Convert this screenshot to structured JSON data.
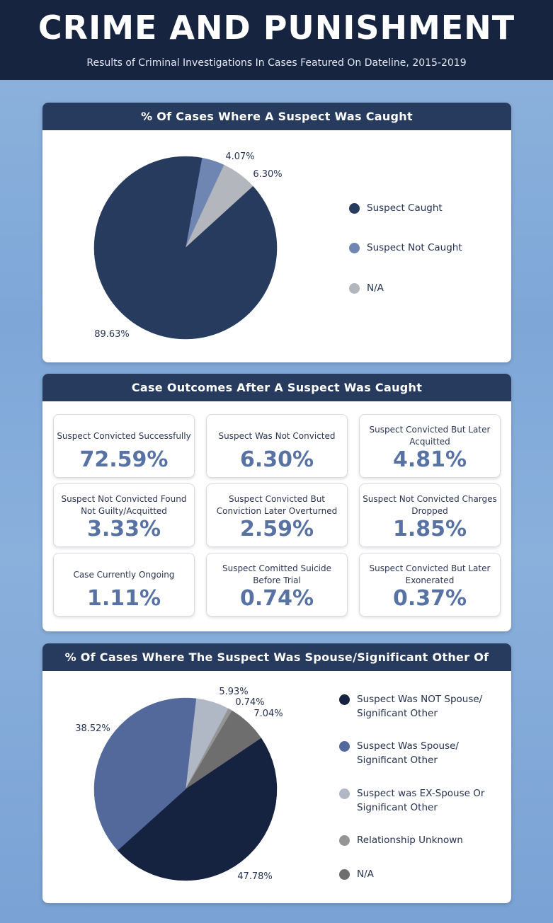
{
  "header": {
    "title": "CRIME AND PUNISHMENT",
    "subtitle": "Results of Criminal Investigations In Cases Featured On Dateline, 2015-2019"
  },
  "panel1": {
    "title": "% Of Cases Where A Suspect Was Caught",
    "legend": [
      {
        "label": "Suspect Caught",
        "color": "#273b5e"
      },
      {
        "label": "Suspect Not Caught",
        "color": "#6f86b3"
      },
      {
        "label": "N/A",
        "color": "#b3b6bc"
      }
    ]
  },
  "panel2": {
    "title": "Case Outcomes After A Suspect Was Caught",
    "cards": [
      {
        "label": "Suspect Convicted Successfully",
        "value": "72.59%"
      },
      {
        "label": "Suspect Was Not Convicted",
        "value": "6.30%"
      },
      {
        "label": "Suspect Convicted But Later Acquitted",
        "value": "4.81%"
      },
      {
        "label": "Suspect Not Convicted Found Not Guilty/Acquitted",
        "value": "3.33%"
      },
      {
        "label": "Suspect Convicted But Conviction Later Overturned",
        "value": "2.59%"
      },
      {
        "label": "Suspect Not Convicted Charges Dropped",
        "value": "1.85%"
      },
      {
        "label": "Case Currently Ongoing",
        "value": "1.11%"
      },
      {
        "label": "Suspect Comitted Suicide Before Trial",
        "value": "0.74%"
      },
      {
        "label": "Suspect Convicted But Later Exonerated",
        "value": "0.37%"
      }
    ]
  },
  "panel3": {
    "title": "% Of Cases Where The Suspect Was Spouse/Significant Other Of Victim",
    "legend": [
      {
        "label": "Suspect Was NOT Spouse/ Significant Other",
        "color": "#152240"
      },
      {
        "label": "Suspect Was Spouse/ Significant Other",
        "color": "#53699b"
      },
      {
        "label": "Suspect was EX-Spouse Or Significant Other",
        "color": "#b0b8c6"
      },
      {
        "label": "Relationship Unknown",
        "color": "#959595"
      },
      {
        "label": "N/A",
        "color": "#6e6e6e"
      }
    ]
  },
  "chart_data": [
    {
      "type": "pie",
      "title": "% Of Cases Where A Suspect Was Caught",
      "categories": [
        "Suspect Caught",
        "Suspect Not Caught",
        "N/A"
      ],
      "values": [
        89.63,
        4.07,
        6.3
      ],
      "labels": [
        "89.63%",
        "4.07%",
        "6.30%"
      ],
      "colors": [
        "#273b5e",
        "#6f86b3",
        "#b3b6bc"
      ],
      "legend": "right"
    },
    {
      "type": "table",
      "title": "Case Outcomes After A Suspect Was Caught",
      "categories": [
        "Suspect Convicted Successfully",
        "Suspect Was Not Convicted",
        "Suspect Convicted But Later Acquitted",
        "Suspect Not Convicted Found Not Guilty/Acquitted",
        "Suspect Convicted But Conviction Later Overturned",
        "Suspect Not Convicted Charges Dropped",
        "Case Currently Ongoing",
        "Suspect Comitted Suicide Before Trial",
        "Suspect Convicted But Later Exonerated"
      ],
      "values": [
        72.59,
        6.3,
        4.81,
        3.33,
        2.59,
        1.85,
        1.11,
        0.74,
        0.37
      ]
    },
    {
      "type": "pie",
      "title": "% Of Cases Where The Suspect Was Spouse/Significant Other Of Victim",
      "categories": [
        "Suspect Was NOT Spouse/ Significant Other",
        "Suspect Was Spouse/ Significant Other",
        "Suspect was EX-Spouse Or Significant Other",
        "Relationship Unknown",
        "N/A"
      ],
      "values": [
        47.78,
        38.52,
        5.93,
        0.74,
        7.04
      ],
      "labels": [
        "47.78%",
        "38.52%",
        "5.93%",
        "0.74%",
        "7.04%"
      ],
      "colors": [
        "#152240",
        "#53699b",
        "#b0b8c6",
        "#959595",
        "#6e6e6e"
      ],
      "legend": "right"
    }
  ]
}
